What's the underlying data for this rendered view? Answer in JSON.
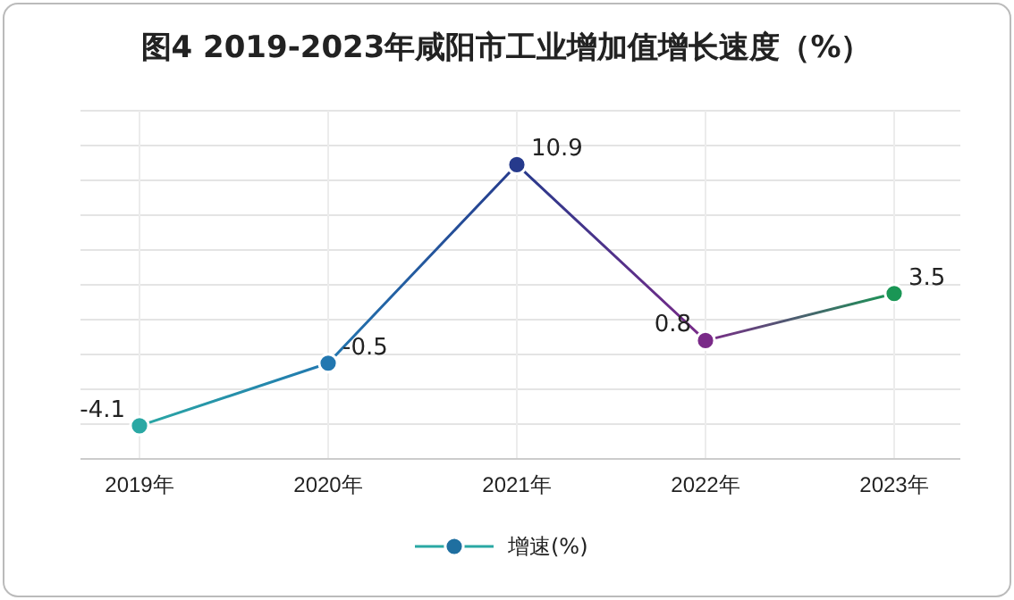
{
  "chart_data": {
    "type": "line",
    "title": "图4  2019-2023年咸阳市工业增加值增长速度（%）",
    "categories": [
      "2019年",
      "2020年",
      "2021年",
      "2022年",
      "2023年"
    ],
    "series": [
      {
        "name": "增速(%)",
        "color": "#1f6fa0",
        "colors": [
          "#2aa8a4",
          "#2277b0",
          "#263a8c",
          "#7a2a88",
          "#1a9655"
        ],
        "values": [
          -4.1,
          -0.5,
          10.9,
          0.8,
          3.5
        ]
      }
    ],
    "ylim": [
      -6,
      14
    ],
    "yticks": [
      {
        "value": -6,
        "label": null
      },
      {
        "value": -4,
        "label": null
      },
      {
        "value": -2,
        "label": null
      },
      {
        "value": 0,
        "label": null
      },
      {
        "value": 2,
        "label": null
      },
      {
        "value": 4,
        "label": null
      },
      {
        "value": 6,
        "label": null
      },
      {
        "value": 8,
        "label": null
      },
      {
        "value": 10,
        "label": null
      },
      {
        "value": 12,
        "label": null
      },
      {
        "value": 14,
        "label": null
      }
    ],
    "grid": true,
    "tick_labels": "x",
    "data_labels": true,
    "legend": "bottom",
    "marker": "circle",
    "line_style": "solid"
  }
}
